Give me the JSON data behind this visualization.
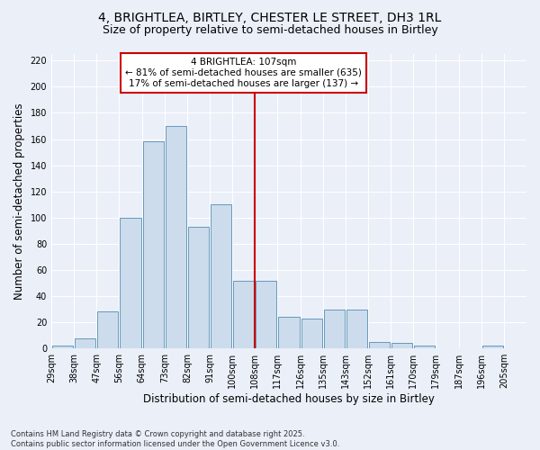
{
  "title": "4, BRIGHTLEA, BIRTLEY, CHESTER LE STREET, DH3 1RL",
  "subtitle": "Size of property relative to semi-detached houses in Birtley",
  "xlabel": "Distribution of semi-detached houses by size in Birtley",
  "ylabel": "Number of semi-detached properties",
  "footnote": "Contains HM Land Registry data © Crown copyright and database right 2025.\nContains public sector information licensed under the Open Government Licence v3.0.",
  "bin_labels": [
    "29sqm",
    "38sqm",
    "47sqm",
    "56sqm",
    "64sqm",
    "73sqm",
    "82sqm",
    "91sqm",
    "100sqm",
    "108sqm",
    "117sqm",
    "126sqm",
    "135sqm",
    "143sqm",
    "152sqm",
    "161sqm",
    "170sqm",
    "179sqm",
    "187sqm",
    "196sqm",
    "205sqm"
  ],
  "bar_heights": [
    2,
    8,
    28,
    100,
    158,
    170,
    93,
    110,
    52,
    52,
    24,
    23,
    30,
    30,
    5,
    4,
    2,
    0,
    0,
    2
  ],
  "bar_color": "#ccdcec",
  "bar_edge_color": "#6699bb",
  "property_value_index": 9,
  "annotation_text": "4 BRIGHTLEA: 107sqm\n← 81% of semi-detached houses are smaller (635)\n17% of semi-detached houses are larger (137) →",
  "vline_color": "#cc0000",
  "annotation_box_edgecolor": "#cc0000",
  "ylim": [
    0,
    225
  ],
  "yticks": [
    0,
    20,
    40,
    60,
    80,
    100,
    120,
    140,
    160,
    180,
    200,
    220
  ],
  "background_color": "#eaeff8",
  "grid_color": "#ffffff",
  "title_fontsize": 10,
  "subtitle_fontsize": 9,
  "axis_label_fontsize": 8.5,
  "tick_fontsize": 7,
  "annotation_fontsize": 7.5,
  "footnote_fontsize": 6
}
